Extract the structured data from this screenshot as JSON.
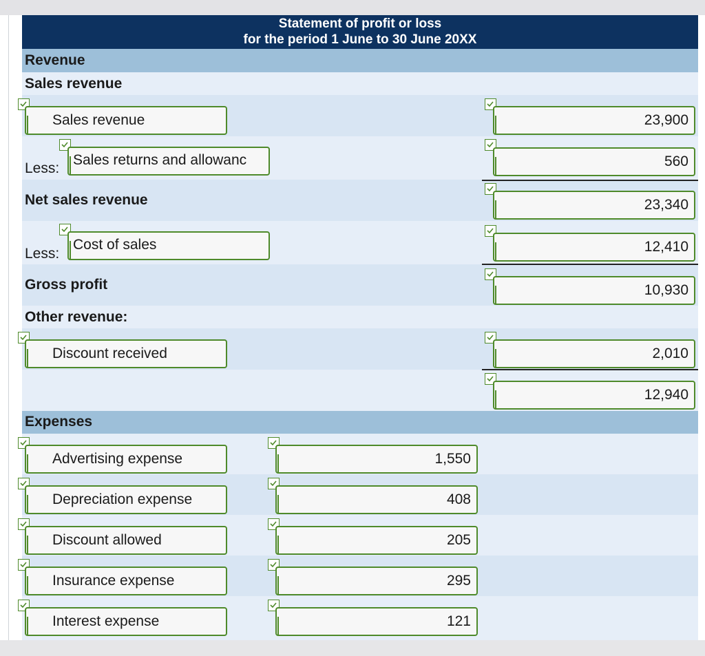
{
  "statement": {
    "title_line1": "Statement of profit or loss",
    "title_line2": "for the period 1 June to 30 June 20XX"
  },
  "sections": {
    "revenue": "Revenue",
    "sales_revenue_heading": "Sales revenue",
    "net_sales_revenue": "Net sales revenue",
    "gross_profit": "Gross profit",
    "other_revenue": "Other revenue:",
    "expenses": "Expenses"
  },
  "labels": {
    "less1": "Less:",
    "less2": "Less:"
  },
  "rows": {
    "sales_revenue": {
      "name": "Sales revenue",
      "amount": "23,900"
    },
    "sales_returns": {
      "name": "Sales returns and allowanc",
      "amount": "560"
    },
    "net_sales": {
      "amount": "23,340"
    },
    "cost_of_sales": {
      "name": "Cost of sales",
      "amount": "12,410"
    },
    "gross_profit": {
      "amount": "10,930"
    },
    "discount_received": {
      "name": "Discount received",
      "amount": "2,010"
    },
    "total_other": {
      "amount": "12,940"
    }
  },
  "expenses": [
    {
      "name": "Advertising expense",
      "amount": "1,550"
    },
    {
      "name": "Depreciation expense",
      "amount": "408"
    },
    {
      "name": "Discount allowed",
      "amount": "205"
    },
    {
      "name": "Insurance expense",
      "amount": "295"
    },
    {
      "name": "Interest expense",
      "amount": "121"
    }
  ],
  "colors": {
    "title_bg": "#0d3260",
    "header_bg": "#9dbfd9",
    "row_light": "#e6eef8",
    "row_mid": "#d8e5f3",
    "field_border": "#4e8a2a"
  }
}
